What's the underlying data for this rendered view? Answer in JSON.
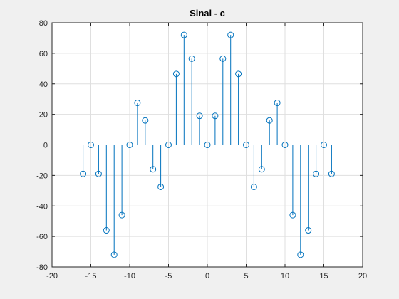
{
  "chart_data": {
    "type": "stem",
    "title": "Sinal - c",
    "xlabel": "",
    "ylabel": "",
    "xlim": [
      -20,
      20
    ],
    "ylim": [
      -80,
      80
    ],
    "x_ticks": [
      -20,
      -15,
      -10,
      -5,
      0,
      5,
      10,
      15,
      20
    ],
    "y_ticks": [
      -80,
      -60,
      -40,
      -20,
      0,
      20,
      40,
      60,
      80
    ],
    "grid": true,
    "series_color": "#0072bd",
    "x": [
      -16,
      -15,
      -14,
      -13,
      -12,
      -11,
      -10,
      -9,
      -8,
      -7,
      -6,
      -5,
      -4,
      -3,
      -2,
      -1,
      0,
      1,
      2,
      3,
      4,
      5,
      6,
      7,
      8,
      9,
      10,
      11,
      12,
      13,
      14,
      15,
      16
    ],
    "y": [
      -19,
      0,
      -19,
      -56,
      -72,
      -46,
      0,
      27.5,
      16,
      -16,
      -27.5,
      0,
      46.5,
      72,
      56.5,
      19,
      0,
      19,
      56.5,
      72,
      46.5,
      0,
      -27.5,
      -16,
      16,
      27.5,
      0,
      -46,
      -72,
      -56,
      -19,
      0,
      -19
    ]
  }
}
